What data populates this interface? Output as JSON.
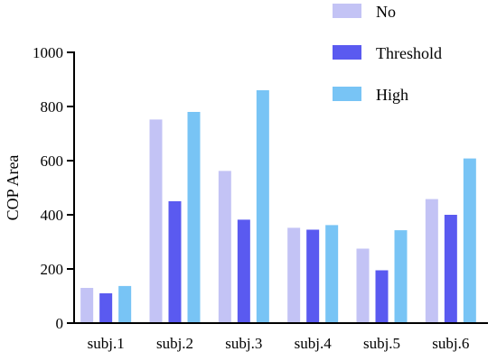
{
  "chart_data": {
    "type": "bar",
    "title": "",
    "xlabel": "",
    "ylabel": "COP Area",
    "ylim": [
      0,
      1000
    ],
    "yticks": [
      0,
      200,
      400,
      600,
      800,
      1000
    ],
    "grid": false,
    "legend_position": "top-right",
    "categories": [
      "subj.1",
      "subj.2",
      "subj.3",
      "subj.4",
      "subj.5",
      "subj.6"
    ],
    "series": [
      {
        "name": "No",
        "color": "#c3c3f5",
        "values": [
          130,
          752,
          562,
          352,
          275,
          458
        ]
      },
      {
        "name": "Threshold",
        "color": "#5a5af0",
        "values": [
          110,
          450,
          382,
          345,
          195,
          400
        ]
      },
      {
        "name": "High",
        "color": "#78c4f5",
        "values": [
          137,
          780,
          860,
          362,
          343,
          608
        ]
      }
    ]
  }
}
